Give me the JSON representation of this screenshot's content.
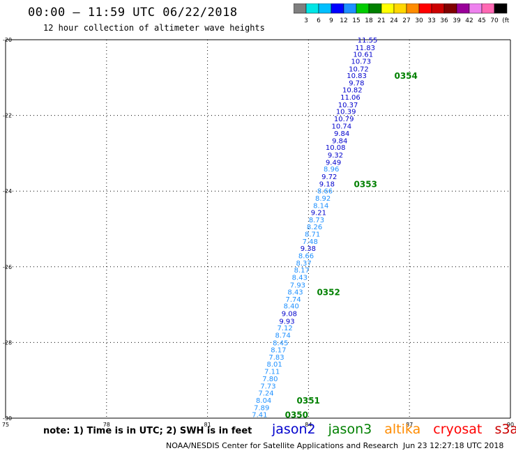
{
  "title": "00:00 – 11:59 UTC 06/22/2018",
  "subtitle": "12 hour collection of altimeter wave heights",
  "colorbar": {
    "colors": [
      "#7f7f7f",
      "#00e5e5",
      "#00bfff",
      "#0000ff",
      "#1e90ff",
      "#00cc00",
      "#008000",
      "#ffff00",
      "#ffd700",
      "#ff8c00",
      "#ff0000",
      "#cc0000",
      "#800000",
      "#990099",
      "#ee82ee",
      "#ff69b4",
      "#000000"
    ],
    "labels": [
      "3",
      "6",
      "9",
      "12",
      "15",
      "18",
      "21",
      "24",
      "27",
      "30",
      "33",
      "36",
      "39",
      "42",
      "45",
      "70",
      "(ft)"
    ]
  },
  "note": "note: 1) Time is in UTC; 2) SWH is in feet",
  "legend": [
    {
      "label": "jason2",
      "color": "#0000cc"
    },
    {
      "label": "jason3",
      "color": "#008000"
    },
    {
      "label": "altika",
      "color": "#ff8c00"
    },
    {
      "label": "cryosat",
      "color": "#ff0000"
    },
    {
      "label": "s3a",
      "color": "#cc0000"
    }
  ],
  "credit": "NOAA/NESDIS Center for Satellite Applications and Research",
  "credit_time": "Jun 23 12:27:18 UTC 2018",
  "chart_data": {
    "type": "scatter",
    "xlim": [
      75,
      90
    ],
    "ylim": [
      -30,
      -20
    ],
    "xticks": [
      75,
      78,
      81,
      84,
      87,
      90
    ],
    "yticks": [
      -20,
      -22,
      -24,
      -26,
      -28,
      -30
    ],
    "grid": true,
    "series": [
      {
        "points": [
          {
            "x": 86.05,
            "y": -20.0,
            "v": "11.55",
            "color": "#0000cc"
          },
          {
            "x": 85.98,
            "y": -20.2,
            "v": "11.83",
            "color": "#0000cc"
          },
          {
            "x": 85.92,
            "y": -20.38,
            "v": "10.61",
            "color": "#0000cc"
          },
          {
            "x": 85.86,
            "y": -20.56,
            "v": "10.73",
            "color": "#0000cc"
          },
          {
            "x": 85.79,
            "y": -20.76,
            "v": "10.72",
            "color": "#0000cc"
          },
          {
            "x": 85.73,
            "y": -20.94,
            "v": "10.83",
            "color": "#0000cc"
          },
          {
            "x": 85.66,
            "y": -21.13,
            "v": "9.78",
            "color": "#0000cc"
          },
          {
            "x": 85.6,
            "y": -21.32,
            "v": "10.82",
            "color": "#0000cc"
          },
          {
            "x": 85.54,
            "y": -21.51,
            "v": "11.06",
            "color": "#0000cc"
          },
          {
            "x": 85.47,
            "y": -21.71,
            "v": "10.37",
            "color": "#0000cc"
          },
          {
            "x": 85.41,
            "y": -21.89,
            "v": "10.39",
            "color": "#0000cc"
          },
          {
            "x": 85.35,
            "y": -22.08,
            "v": "10.79",
            "color": "#0000cc"
          },
          {
            "x": 85.28,
            "y": -22.27,
            "v": "10.74",
            "color": "#0000cc"
          },
          {
            "x": 85.22,
            "y": -22.47,
            "v": "9.84",
            "color": "#0000cc"
          },
          {
            "x": 85.16,
            "y": -22.66,
            "v": "9.84",
            "color": "#0000cc"
          },
          {
            "x": 85.1,
            "y": -22.84,
            "v": "10.08",
            "color": "#0000cc"
          },
          {
            "x": 85.03,
            "y": -23.04,
            "v": "9.32",
            "color": "#0000cc"
          },
          {
            "x": 84.97,
            "y": -23.23,
            "v": "9.49",
            "color": "#0000cc"
          },
          {
            "x": 84.91,
            "y": -23.41,
            "v": "8.96",
            "color": "#1e90ff"
          },
          {
            "x": 84.85,
            "y": -23.61,
            "v": "9.72",
            "color": "#0000cc"
          },
          {
            "x": 84.78,
            "y": -23.8,
            "v": "9.18",
            "color": "#0000cc"
          },
          {
            "x": 84.72,
            "y": -23.99,
            "v": "8.66",
            "color": "#1e90ff"
          },
          {
            "x": 84.66,
            "y": -24.18,
            "v": "8.92",
            "color": "#1e90ff"
          },
          {
            "x": 84.6,
            "y": -24.37,
            "v": "8.14",
            "color": "#1e90ff"
          },
          {
            "x": 84.53,
            "y": -24.56,
            "v": "9.21",
            "color": "#0000cc"
          },
          {
            "x": 84.47,
            "y": -24.75,
            "v": "8.73",
            "color": "#1e90ff"
          },
          {
            "x": 84.41,
            "y": -24.94,
            "v": "8.26",
            "color": "#1e90ff"
          },
          {
            "x": 84.35,
            "y": -25.13,
            "v": "8.71",
            "color": "#1e90ff"
          },
          {
            "x": 84.28,
            "y": -25.32,
            "v": "7.48",
            "color": "#1e90ff"
          },
          {
            "x": 84.22,
            "y": -25.51,
            "v": "9.38",
            "color": "#0000cc"
          },
          {
            "x": 84.16,
            "y": -25.7,
            "v": "8.66",
            "color": "#1e90ff"
          },
          {
            "x": 84.09,
            "y": -25.89,
            "v": "8.37",
            "color": "#1e90ff"
          },
          {
            "x": 84.03,
            "y": -26.08,
            "v": "8.17",
            "color": "#1e90ff"
          },
          {
            "x": 83.97,
            "y": -26.27,
            "v": "8.43",
            "color": "#1e90ff"
          },
          {
            "x": 83.91,
            "y": -26.47,
            "v": "7.93",
            "color": "#1e90ff"
          },
          {
            "x": 83.84,
            "y": -26.66,
            "v": "8.43",
            "color": "#1e90ff"
          },
          {
            "x": 83.78,
            "y": -26.85,
            "v": "7.74",
            "color": "#1e90ff"
          },
          {
            "x": 83.72,
            "y": -27.03,
            "v": "8.40",
            "color": "#1e90ff"
          },
          {
            "x": 83.66,
            "y": -27.23,
            "v": "9.08",
            "color": "#0000cc"
          },
          {
            "x": 83.59,
            "y": -27.43,
            "v": "9.93",
            "color": "#0000cc"
          },
          {
            "x": 83.53,
            "y": -27.61,
            "v": "7.12",
            "color": "#1e90ff"
          },
          {
            "x": 83.47,
            "y": -27.8,
            "v": "8.74",
            "color": "#1e90ff"
          },
          {
            "x": 83.4,
            "y": -28.0,
            "v": "8.45",
            "color": "#1e90ff"
          },
          {
            "x": 83.34,
            "y": -28.19,
            "v": "8.17",
            "color": "#1e90ff"
          },
          {
            "x": 83.28,
            "y": -28.38,
            "v": "7.83",
            "color": "#1e90ff"
          },
          {
            "x": 83.22,
            "y": -28.56,
            "v": "8.01",
            "color": "#1e90ff"
          },
          {
            "x": 83.15,
            "y": -28.76,
            "v": "7.11",
            "color": "#1e90ff"
          },
          {
            "x": 83.09,
            "y": -28.95,
            "v": "7.80",
            "color": "#1e90ff"
          },
          {
            "x": 83.03,
            "y": -29.14,
            "v": "7.73",
            "color": "#1e90ff"
          },
          {
            "x": 82.97,
            "y": -29.33,
            "v": "7.24",
            "color": "#1e90ff"
          },
          {
            "x": 82.9,
            "y": -29.52,
            "v": "8.04",
            "color": "#1e90ff"
          },
          {
            "x": 82.84,
            "y": -29.71,
            "v": "7.89",
            "color": "#1e90ff"
          },
          {
            "x": 82.78,
            "y": -29.9,
            "v": "7.41",
            "color": "#1e90ff"
          }
        ]
      }
    ],
    "annotations": [
      {
        "x": 86.55,
        "y": -20.94,
        "text": "0354",
        "color": "#008000"
      },
      {
        "x": 85.35,
        "y": -23.8,
        "text": "0353",
        "color": "#008000"
      },
      {
        "x": 84.25,
        "y": -26.66,
        "text": "0352",
        "color": "#008000"
      },
      {
        "x": 83.65,
        "y": -29.52,
        "text": "0351",
        "color": "#008000"
      },
      {
        "x": 83.3,
        "y": -29.9,
        "text": "0350",
        "color": "#008000"
      }
    ]
  }
}
